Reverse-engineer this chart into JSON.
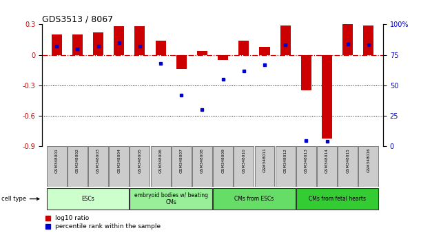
{
  "title": "GDS3513 / 8067",
  "samples": [
    "GSM348001",
    "GSM348002",
    "GSM348003",
    "GSM348004",
    "GSM348005",
    "GSM348006",
    "GSM348007",
    "GSM348008",
    "GSM348009",
    "GSM348010",
    "GSM348011",
    "GSM348012",
    "GSM348013",
    "GSM348014",
    "GSM348015",
    "GSM348016"
  ],
  "log10_ratio": [
    0.2,
    0.2,
    0.22,
    0.28,
    0.28,
    0.14,
    -0.14,
    0.04,
    -0.05,
    0.14,
    0.08,
    0.29,
    -0.35,
    -0.82,
    0.3,
    0.29
  ],
  "percentile_rank": [
    82,
    80,
    82,
    85,
    82,
    68,
    42,
    30,
    55,
    62,
    67,
    83,
    5,
    4,
    84,
    83
  ],
  "ylim_left": [
    -0.9,
    0.3
  ],
  "y_ticks_left": [
    0.3,
    0.0,
    -0.3,
    -0.6,
    -0.9
  ],
  "y_ticks_right": [
    100,
    75,
    50,
    25,
    0
  ],
  "right_tick_labels": [
    "100%",
    "75",
    "50",
    "25",
    "0"
  ],
  "cell_groups": [
    {
      "label": "ESCs",
      "start": 0,
      "end": 3,
      "color": "#ccffcc"
    },
    {
      "label": "embryoid bodies w/ beating\nCMs",
      "start": 4,
      "end": 7,
      "color": "#99ee99"
    },
    {
      "label": "CMs from ESCs",
      "start": 8,
      "end": 11,
      "color": "#66dd66"
    },
    {
      "label": "CMs from fetal hearts",
      "start": 12,
      "end": 15,
      "color": "#33cc33"
    }
  ],
  "bar_color": "#cc0000",
  "dot_color": "#0000cc",
  "zero_line_color": "#cc0000",
  "bg_color": "#ffffff",
  "sample_box_color": "#cccccc",
  "bar_width": 0.5,
  "left_tick_labels": [
    "0.3",
    "0",
    "-0.3",
    "-0.6",
    "-0.9"
  ]
}
